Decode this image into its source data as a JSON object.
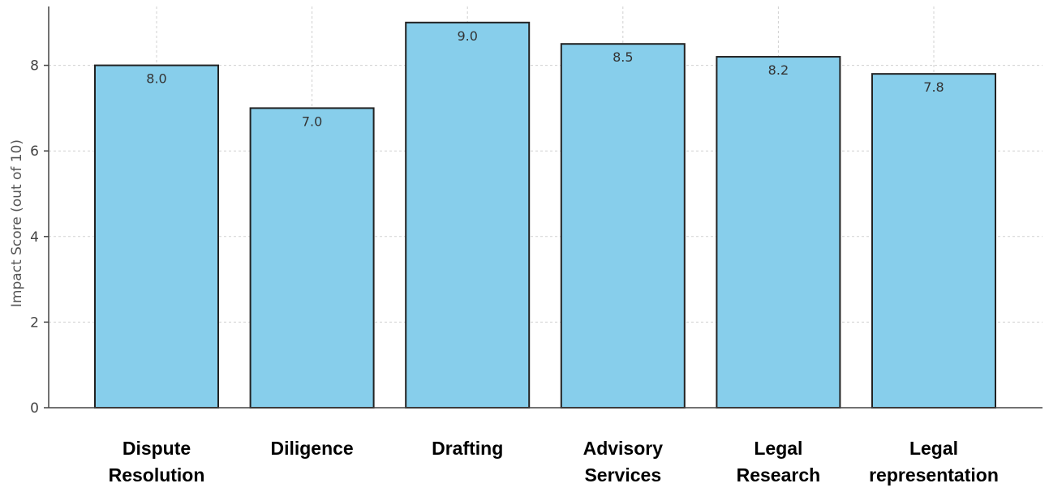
{
  "chart_data": {
    "type": "bar",
    "title": "",
    "xlabel": "",
    "ylabel": "Impact Score (out of 10)",
    "categories": [
      [
        "Dispute",
        "Resolution"
      ],
      [
        "Diligence"
      ],
      [
        "Drafting"
      ],
      [
        "Advisory",
        "Services"
      ],
      [
        "Legal",
        "Research"
      ],
      [
        "Legal",
        "representation"
      ]
    ],
    "values": [
      8.0,
      7.0,
      9.0,
      8.5,
      8.2,
      7.8
    ],
    "value_labels": [
      "8.0",
      "7.0",
      "9.0",
      "8.5",
      "8.2",
      "7.8"
    ],
    "ylim": [
      0,
      9.4
    ],
    "yticks": [
      0,
      2,
      4,
      6,
      8
    ],
    "grid": true,
    "bar_color": "#87ceeb",
    "edge_color": "#222222"
  }
}
